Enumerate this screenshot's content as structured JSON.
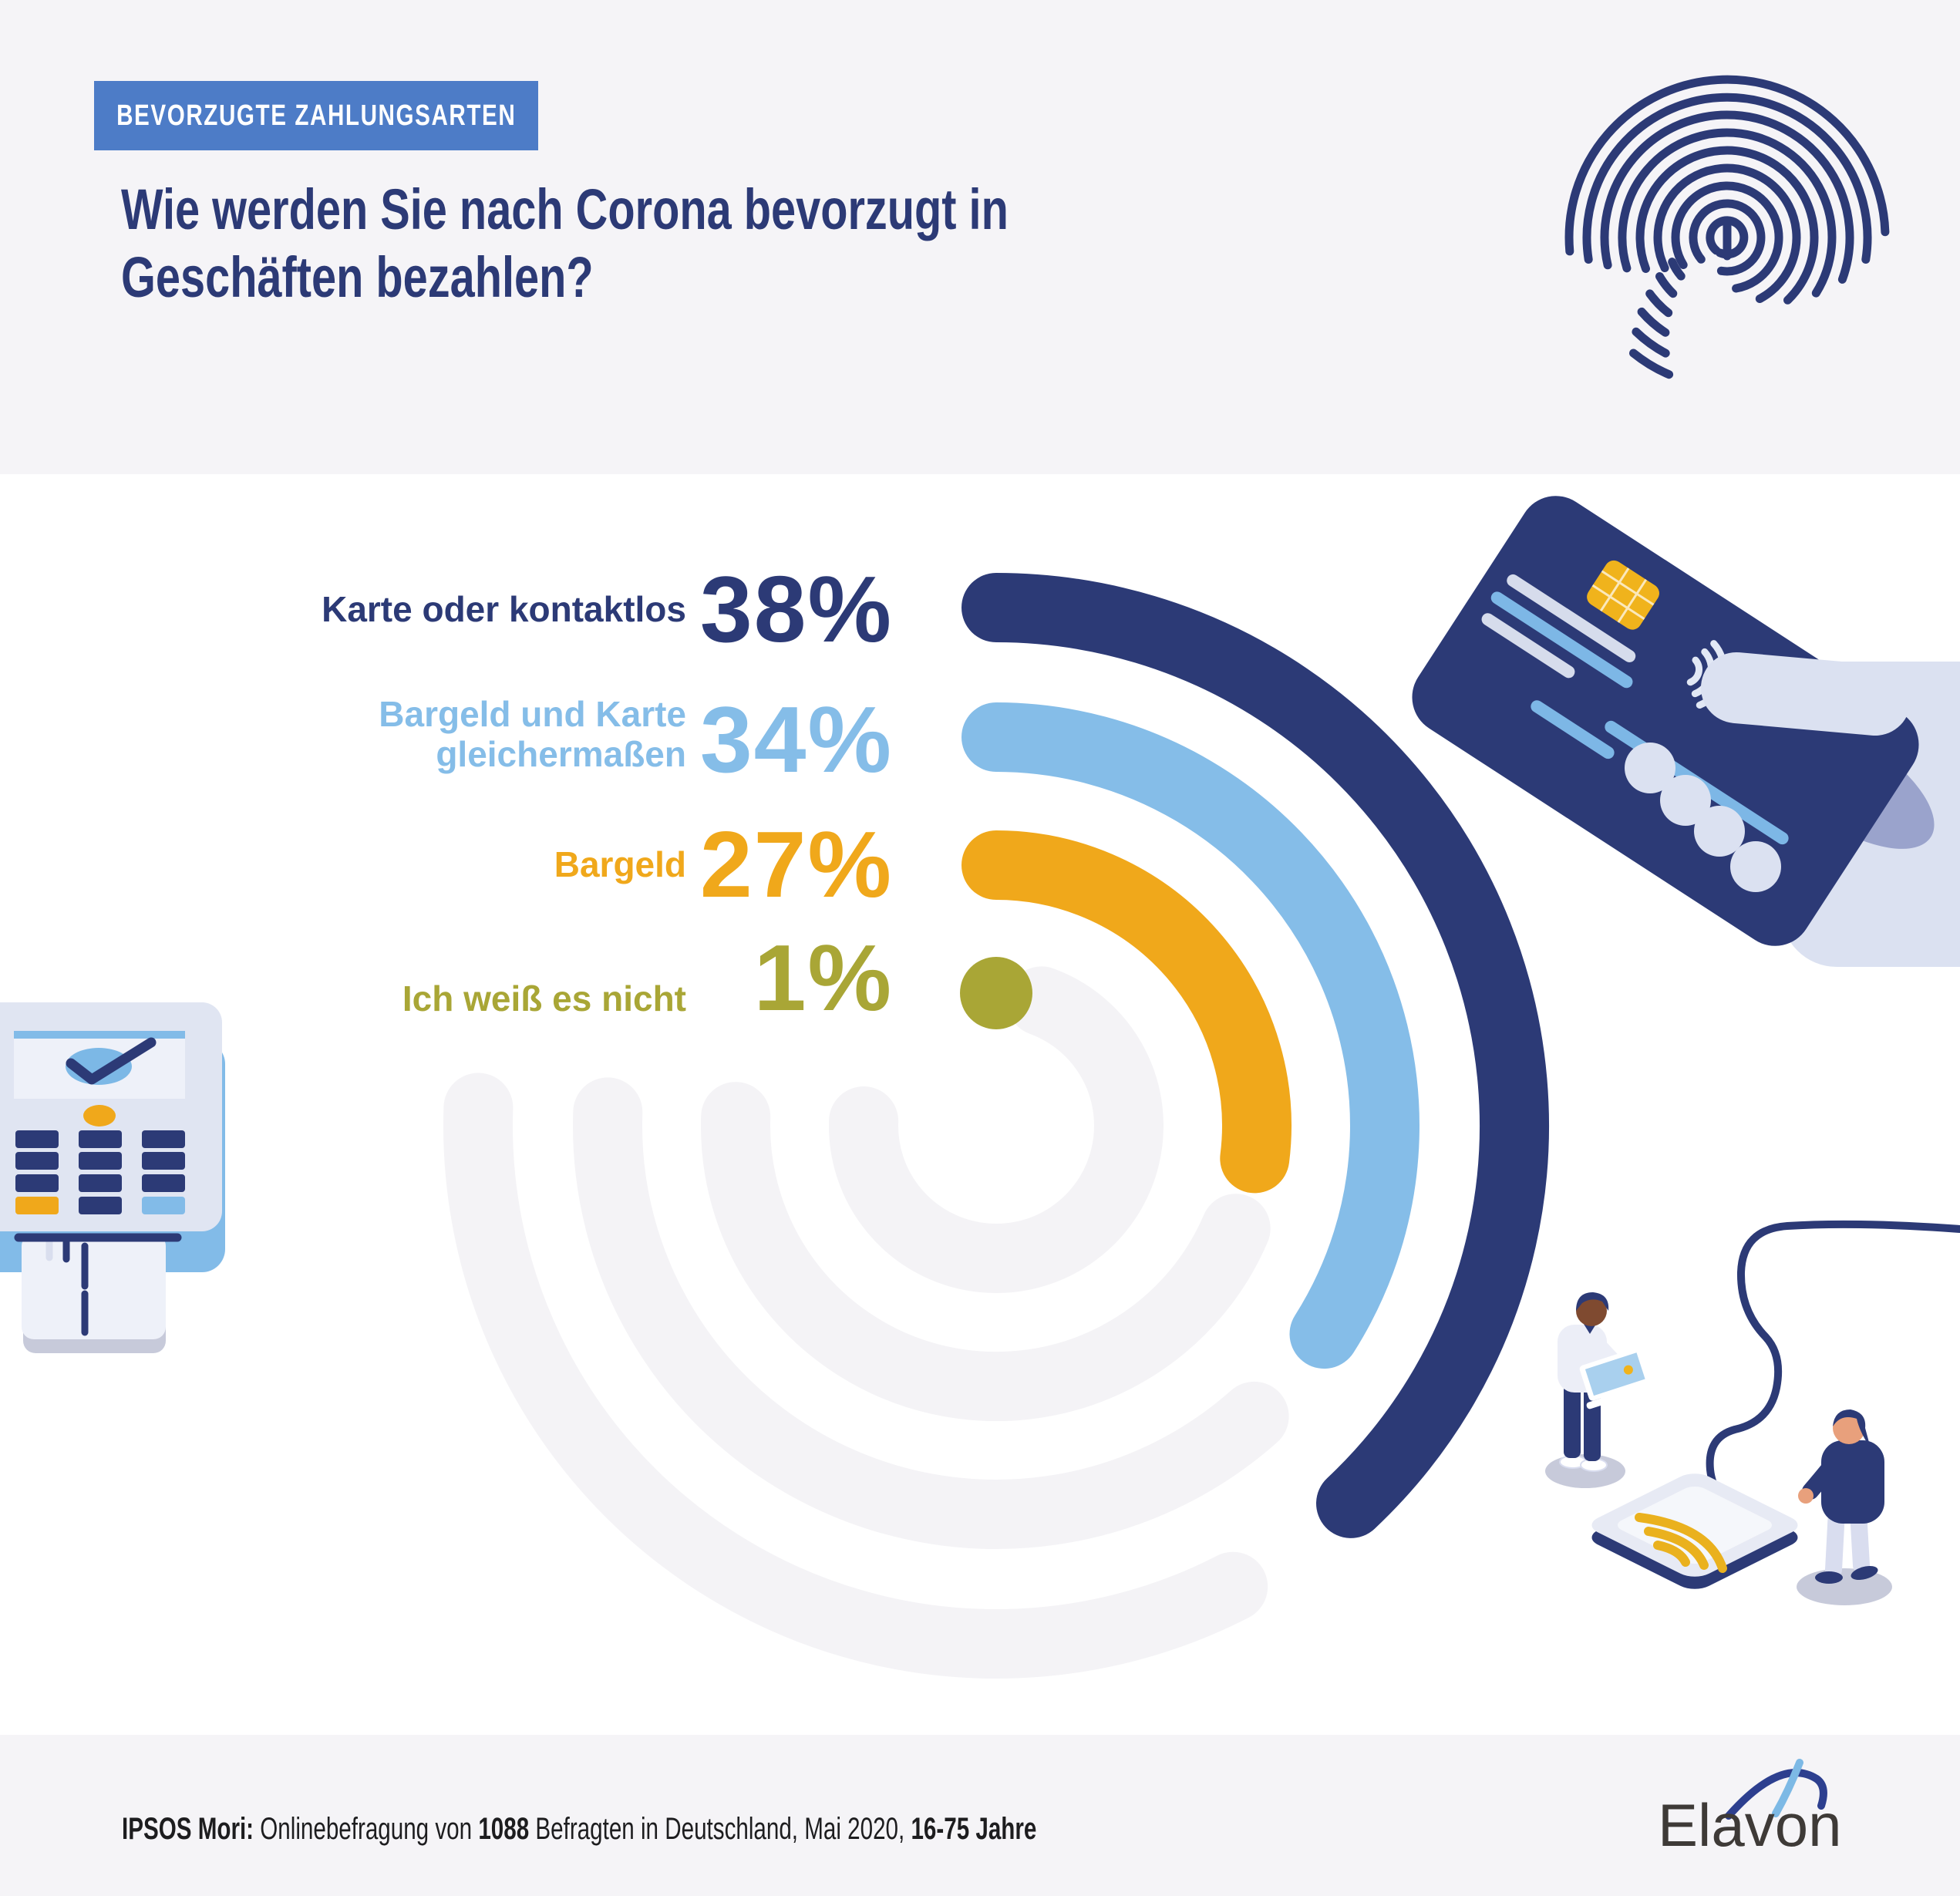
{
  "badge": {
    "label": "BEVORZUGTE ZAHLUNGSARTEN",
    "background": "#4d7cc7",
    "text_color": "#ffffff"
  },
  "title": {
    "lines": [
      "Wie werden Sie nach Corona bevorzugt in",
      "Geschäften bezahlen?"
    ],
    "color": "#2c3a76"
  },
  "chart_data": {
    "type": "radial-bar",
    "title": "Bevorzugte Zahlungsarten nach Corona",
    "unit": "%",
    "start_angle_deg": 0,
    "direction": "clockwise",
    "angle_per_percent_deg": 3.6,
    "categories": [
      "Karte oder kontaktlos",
      "Bargeld und Karte gleichermaßen",
      "Bargeld",
      "Ich weiß es nicht"
    ],
    "values": [
      38,
      34,
      27,
      1
    ],
    "rows": [
      {
        "label_lines": [
          "Karte oder kontaktlos"
        ],
        "value": 38,
        "display": "38%",
        "color": "#2c3a76"
      },
      {
        "label_lines": [
          "Bargeld und Karte",
          "gleichermaßen"
        ],
        "value": 34,
        "display": "34%",
        "color": "#85bde8"
      },
      {
        "label_lines": [
          "Bargeld"
        ],
        "value": 27,
        "display": "27%",
        "color": "#f0a81b"
      },
      {
        "label_lines": [
          "Ich weiß es nicht"
        ],
        "value": 1,
        "display": "1%",
        "color": "#a9a636"
      }
    ]
  },
  "footer": {
    "source_bold": "IPSOS Mori:",
    "text_a": " Onlinebefragung von ",
    "sample_bold": "1088",
    "text_b": " Befragten in Deutschland, Mai 2020, ",
    "age_bold": "16-75 Jahre",
    "logo_text": "Elavon"
  },
  "theme": {
    "navy": "#2c3a76",
    "light_blue": "#85bde8",
    "orange": "#f0a81b",
    "green": "#a9a636",
    "badge_blue": "#4d7cc7",
    "band": "#f5f4f7",
    "watermark": "#f4f3f6",
    "footer_text": "#1d1d1f",
    "logo_text": "#3e3a37",
    "hand": "#dbe1f1",
    "hand_shadow": "#9aa3cc",
    "chip": "#f0b31c",
    "stripe_gray": "#d6dcec",
    "stripe_blue": "#7db7e6",
    "terminal_body": "#e0e5f2",
    "terminal_blue": "#82bbe8",
    "screen": "#eef1f9",
    "pad_top": "#e7eaf4",
    "pad_inner": "#f5f7fb",
    "pad_yellow": "#eab11e",
    "skin_dark": "#7f4a30",
    "skin_light": "#e8a07c",
    "shirt": "#eceef7",
    "pants_light": "#d9ddef",
    "shadow_el": "#c7cada",
    "laptop_screen": "#a9d0ee"
  },
  "icons": {
    "top_right": "fingerprint-icon",
    "card": "card-in-hand-illustration",
    "terminal": "payment-terminal-illustration",
    "pad": "contactless-pad-illustration",
    "cable": "cable-icon",
    "check": "check-icon",
    "chip": "chip-icon",
    "contactless": "contactless-waves-icon",
    "logo_swoosh": "elavon-swoosh-icon"
  }
}
